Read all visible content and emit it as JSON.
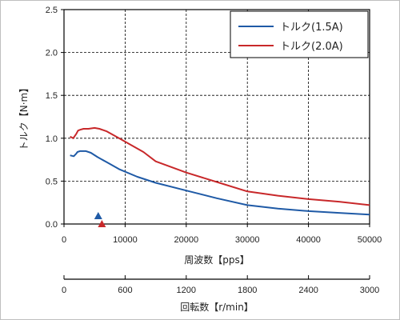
{
  "chart_data": {
    "type": "line",
    "xlabel": "周波数【pps】",
    "ylabel": "トルク【N·m】",
    "xlim": [
      0,
      50000
    ],
    "ylim": [
      0,
      2.5
    ],
    "x_ticks": [
      "0",
      "10000",
      "20000",
      "30000",
      "40000",
      "50000"
    ],
    "y_ticks": [
      "0.0",
      "0.5",
      "1.0",
      "1.5",
      "2.0",
      "2.5"
    ],
    "grid": "dashed",
    "legend": "top-right",
    "series": [
      {
        "name": "トルク(1.5A)",
        "color": "#1f5aa6",
        "x": [
          1000,
          1600,
          2000,
          2200,
          2600,
          3000,
          3600,
          4400,
          5500,
          7000,
          9000,
          12000,
          15000,
          20000,
          25000,
          30000,
          35000,
          40000,
          45000,
          50000
        ],
        "y": [
          0.8,
          0.79,
          0.82,
          0.84,
          0.85,
          0.85,
          0.85,
          0.83,
          0.78,
          0.72,
          0.64,
          0.55,
          0.48,
          0.39,
          0.3,
          0.22,
          0.18,
          0.15,
          0.13,
          0.11
        ]
      },
      {
        "name": "トルク(2.0A)",
        "color": "#c8282a",
        "x": [
          1000,
          1500,
          2000,
          2300,
          2700,
          3200,
          4000,
          5000,
          5800,
          7000,
          9000,
          11000,
          13000,
          15000,
          20000,
          25000,
          30000,
          35000,
          40000,
          45000,
          50000
        ],
        "y": [
          1.02,
          1.0,
          1.05,
          1.09,
          1.1,
          1.11,
          1.11,
          1.12,
          1.11,
          1.08,
          1.0,
          0.92,
          0.84,
          0.73,
          0.6,
          0.49,
          0.38,
          0.33,
          0.29,
          0.26,
          0.22
        ]
      }
    ],
    "markers": [
      {
        "series": 0,
        "x": 5600
      },
      {
        "series": 1,
        "x": 6200
      }
    ],
    "secondary_axis": {
      "label": "回転数【r/min】",
      "ticks": [
        "0",
        "600",
        "1200",
        "1800",
        "2400",
        "3000"
      ]
    }
  }
}
